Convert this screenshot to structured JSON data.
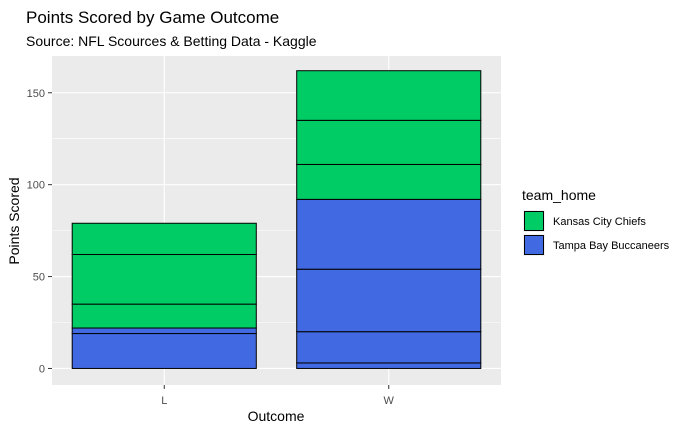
{
  "chart_data": {
    "type": "bar",
    "stacked": true,
    "title": "Points Scored by Game Outcome",
    "subtitle": "Source: NFL Scources & Betting Data - Kaggle",
    "xlabel": "Outcome",
    "ylabel": "Points Scored",
    "categories": [
      "L",
      "W"
    ],
    "ylim": [
      -9,
      170
    ],
    "yticks": [
      0,
      50,
      100,
      150
    ],
    "grid": true,
    "legend": {
      "title": "team_home",
      "position": "right",
      "entries": [
        {
          "name": "Kansas City Chiefs",
          "color": "#00CC66"
        },
        {
          "name": "Tampa Bay Buccaneers",
          "color": "#4169E1"
        }
      ]
    },
    "segments": {
      "L": [
        {
          "team": "Tampa Bay Buccaneers",
          "value": 19
        },
        {
          "team": "Tampa Bay Buccaneers",
          "value": 3
        },
        {
          "team": "Kansas City Chiefs",
          "value": 13
        },
        {
          "team": "Kansas City Chiefs",
          "value": 27
        },
        {
          "team": "Kansas City Chiefs",
          "value": 17
        }
      ],
      "W": [
        {
          "team": "Tampa Bay Buccaneers",
          "value": 3
        },
        {
          "team": "Tampa Bay Buccaneers",
          "value": 17
        },
        {
          "team": "Tampa Bay Buccaneers",
          "value": 34
        },
        {
          "team": "Tampa Bay Buccaneers",
          "value": 38
        },
        {
          "team": "Kansas City Chiefs",
          "value": 19
        },
        {
          "team": "Kansas City Chiefs",
          "value": 24
        },
        {
          "team": "Kansas City Chiefs",
          "value": 27
        }
      ]
    },
    "totals": {
      "L": 79,
      "W": 162
    }
  }
}
